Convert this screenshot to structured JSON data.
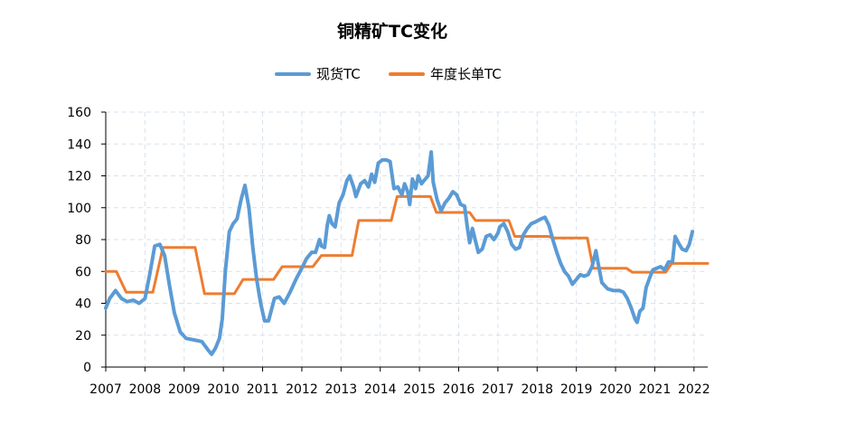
{
  "chart_data": {
    "type": "line",
    "title": "铜精矿TC变化",
    "xlabel": "",
    "ylabel": "",
    "xlim": [
      2007.0,
      2022.35
    ],
    "ylim": [
      0,
      160
    ],
    "y_ticks": [
      0,
      20,
      40,
      60,
      80,
      100,
      120,
      140,
      160
    ],
    "x_ticks": [
      "2007",
      "2008",
      "2009",
      "2010",
      "2011",
      "2012",
      "2013",
      "2014",
      "2015",
      "2016",
      "2017",
      "2018",
      "2019",
      "2020",
      "2021",
      "2022"
    ],
    "grid": true,
    "legend_position": "top-center",
    "series": [
      {
        "name": "现货TC",
        "color": "#5b9bd5",
        "points": [
          [
            2007.0,
            37
          ],
          [
            2007.1,
            43
          ],
          [
            2007.25,
            48
          ],
          [
            2007.4,
            43
          ],
          [
            2007.55,
            41
          ],
          [
            2007.7,
            42
          ],
          [
            2007.85,
            40
          ],
          [
            2008.0,
            43
          ],
          [
            2008.12,
            58
          ],
          [
            2008.25,
            76
          ],
          [
            2008.38,
            77
          ],
          [
            2008.5,
            70
          ],
          [
            2008.62,
            52
          ],
          [
            2008.75,
            34
          ],
          [
            2008.9,
            22
          ],
          [
            2009.05,
            18
          ],
          [
            2009.25,
            17
          ],
          [
            2009.45,
            16
          ],
          [
            2009.6,
            11
          ],
          [
            2009.7,
            8
          ],
          [
            2009.8,
            12
          ],
          [
            2009.9,
            18
          ],
          [
            2009.97,
            30
          ],
          [
            2010.05,
            60
          ],
          [
            2010.15,
            85
          ],
          [
            2010.25,
            90
          ],
          [
            2010.35,
            93
          ],
          [
            2010.45,
            105
          ],
          [
            2010.55,
            114
          ],
          [
            2010.65,
            100
          ],
          [
            2010.75,
            75
          ],
          [
            2010.85,
            55
          ],
          [
            2010.95,
            40
          ],
          [
            2011.05,
            29
          ],
          [
            2011.15,
            29
          ],
          [
            2011.3,
            43
          ],
          [
            2011.42,
            44
          ],
          [
            2011.55,
            40
          ],
          [
            2011.7,
            47
          ],
          [
            2011.85,
            55
          ],
          [
            2012.0,
            62
          ],
          [
            2012.12,
            68
          ],
          [
            2012.25,
            72
          ],
          [
            2012.35,
            72
          ],
          [
            2012.45,
            80
          ],
          [
            2012.5,
            76
          ],
          [
            2012.58,
            75
          ],
          [
            2012.65,
            89
          ],
          [
            2012.7,
            95
          ],
          [
            2012.77,
            90
          ],
          [
            2012.85,
            88
          ],
          [
            2012.95,
            103
          ],
          [
            2013.05,
            108
          ],
          [
            2013.15,
            117
          ],
          [
            2013.22,
            120
          ],
          [
            2013.32,
            113
          ],
          [
            2013.38,
            107
          ],
          [
            2013.5,
            115
          ],
          [
            2013.6,
            117
          ],
          [
            2013.7,
            113
          ],
          [
            2013.78,
            121
          ],
          [
            2013.86,
            116
          ],
          [
            2013.95,
            128
          ],
          [
            2014.05,
            130
          ],
          [
            2014.15,
            130
          ],
          [
            2014.25,
            129
          ],
          [
            2014.35,
            112
          ],
          [
            2014.45,
            113
          ],
          [
            2014.55,
            108
          ],
          [
            2014.62,
            115
          ],
          [
            2014.7,
            110
          ],
          [
            2014.75,
            102
          ],
          [
            2014.82,
            118
          ],
          [
            2014.9,
            112
          ],
          [
            2014.97,
            120
          ],
          [
            2015.05,
            115
          ],
          [
            2015.15,
            118
          ],
          [
            2015.22,
            120
          ],
          [
            2015.3,
            135
          ],
          [
            2015.35,
            116
          ],
          [
            2015.45,
            105
          ],
          [
            2015.55,
            98
          ],
          [
            2015.65,
            103
          ],
          [
            2015.75,
            106
          ],
          [
            2015.85,
            110
          ],
          [
            2015.95,
            108
          ],
          [
            2016.05,
            102
          ],
          [
            2016.15,
            101
          ],
          [
            2016.22,
            88
          ],
          [
            2016.28,
            78
          ],
          [
            2016.35,
            87
          ],
          [
            2016.42,
            80
          ],
          [
            2016.5,
            72
          ],
          [
            2016.6,
            74
          ],
          [
            2016.7,
            82
          ],
          [
            2016.8,
            83
          ],
          [
            2016.9,
            80
          ],
          [
            2017.0,
            84
          ],
          [
            2017.05,
            88
          ],
          [
            2017.15,
            90
          ],
          [
            2017.25,
            85
          ],
          [
            2017.35,
            77
          ],
          [
            2017.45,
            74
          ],
          [
            2017.55,
            75
          ],
          [
            2017.65,
            83
          ],
          [
            2017.75,
            87
          ],
          [
            2017.85,
            90
          ],
          [
            2017.95,
            91
          ],
          [
            2018.1,
            93
          ],
          [
            2018.2,
            94
          ],
          [
            2018.3,
            89
          ],
          [
            2018.4,
            80
          ],
          [
            2018.5,
            72
          ],
          [
            2018.6,
            65
          ],
          [
            2018.7,
            60
          ],
          [
            2018.8,
            57
          ],
          [
            2018.9,
            52
          ],
          [
            2019.0,
            55
          ],
          [
            2019.1,
            58
          ],
          [
            2019.2,
            57
          ],
          [
            2019.3,
            58
          ],
          [
            2019.4,
            63
          ],
          [
            2019.5,
            73
          ],
          [
            2019.55,
            66
          ],
          [
            2019.65,
            53
          ],
          [
            2019.8,
            49
          ],
          [
            2019.95,
            48
          ],
          [
            2020.1,
            48
          ],
          [
            2020.2,
            47
          ],
          [
            2020.3,
            43
          ],
          [
            2020.4,
            37
          ],
          [
            2020.5,
            30
          ],
          [
            2020.55,
            28
          ],
          [
            2020.62,
            35
          ],
          [
            2020.7,
            37
          ],
          [
            2020.78,
            50
          ],
          [
            2020.87,
            56
          ],
          [
            2020.95,
            61
          ],
          [
            2021.05,
            62
          ],
          [
            2021.15,
            63
          ],
          [
            2021.25,
            61
          ],
          [
            2021.35,
            66
          ],
          [
            2021.45,
            66
          ],
          [
            2021.52,
            82
          ],
          [
            2021.6,
            78
          ],
          [
            2021.7,
            74
          ],
          [
            2021.8,
            73
          ],
          [
            2021.88,
            77
          ],
          [
            2021.96,
            85
          ]
        ]
      },
      {
        "name": "年度长单TC",
        "color": "#ed7d31",
        "points": [
          [
            2007.0,
            60
          ],
          [
            2007.27,
            60
          ],
          [
            2007.52,
            47
          ],
          [
            2008.2,
            47
          ],
          [
            2008.46,
            75
          ],
          [
            2009.28,
            75
          ],
          [
            2009.52,
            46
          ],
          [
            2010.28,
            46
          ],
          [
            2010.5,
            55
          ],
          [
            2011.28,
            55
          ],
          [
            2011.5,
            63
          ],
          [
            2012.28,
            63
          ],
          [
            2012.5,
            70
          ],
          [
            2013.28,
            70
          ],
          [
            2013.45,
            92
          ],
          [
            2014.28,
            92
          ],
          [
            2014.43,
            107
          ],
          [
            2015.28,
            107
          ],
          [
            2015.43,
            97
          ],
          [
            2016.28,
            97
          ],
          [
            2016.43,
            92
          ],
          [
            2017.28,
            92
          ],
          [
            2017.43,
            82
          ],
          [
            2018.28,
            82
          ],
          [
            2018.43,
            81
          ],
          [
            2019.28,
            81
          ],
          [
            2019.43,
            62
          ],
          [
            2020.28,
            62
          ],
          [
            2020.43,
            59.5
          ],
          [
            2021.28,
            59.5
          ],
          [
            2021.43,
            65
          ],
          [
            2022.35,
            65
          ]
        ]
      }
    ]
  }
}
